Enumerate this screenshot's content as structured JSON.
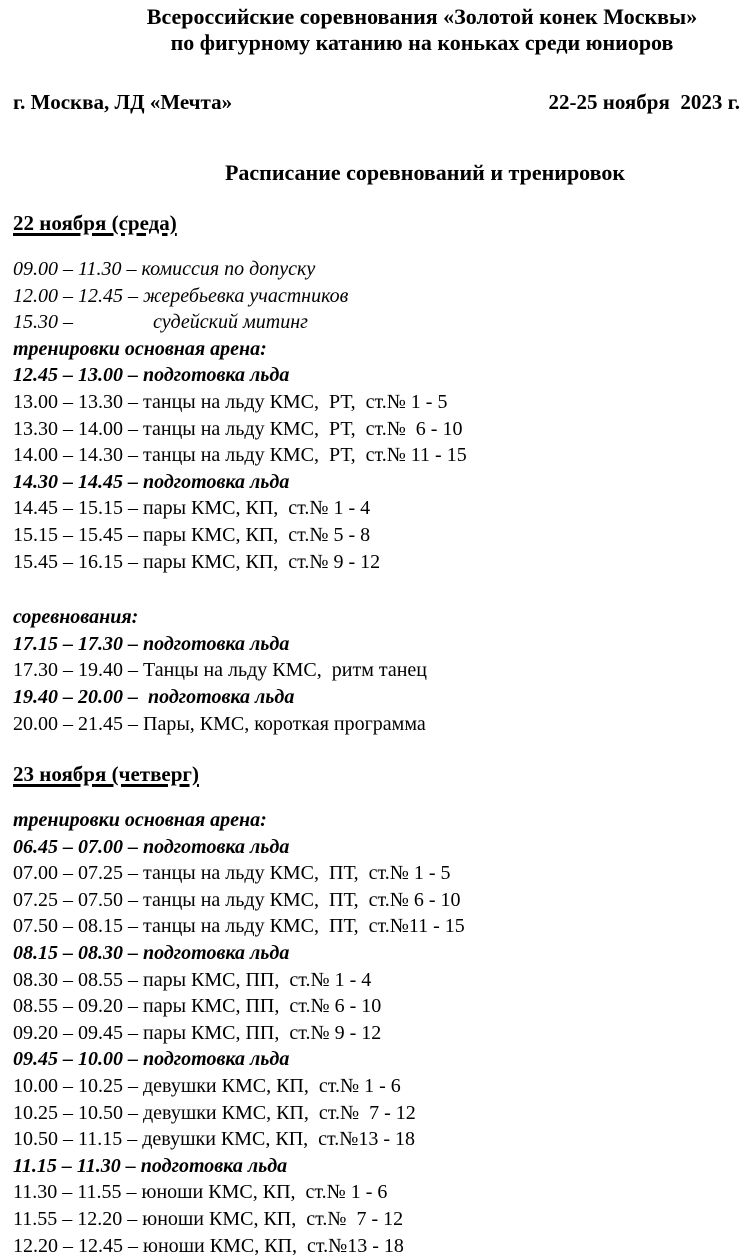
{
  "page": {
    "title_line1": "Всероссийские соревнования «Золотой конек Москвы»",
    "title_line2": "по фигурному катанию на коньках среди юниоров",
    "venue": "г. Москва, ЛД «Мечта»",
    "dates": "22-25 ноября  2023 г.",
    "subtitle": "Расписание соревнований и тренировок"
  },
  "sections": [
    {
      "heading": "22 ноября (среда)",
      "lines": [
        {
          "style": "italic",
          "text": "09.00 – 11.30 – комиссия по допуску"
        },
        {
          "style": "italic",
          "text": "12.00 – 12.45 – жеребьевка участников"
        },
        {
          "style": "italic",
          "text": "15.30 –                судейский митинг"
        },
        {
          "style": "bold-italic",
          "text": "тренировки основная арена:"
        },
        {
          "style": "bold-italic",
          "text": "12.45 – 13.00 – подготовка льда"
        },
        {
          "style": "regular",
          "text": "13.00 – 13.30 – танцы на льду КМС,  РТ,  ст.№ 1 - 5"
        },
        {
          "style": "regular",
          "text": "13.30 – 14.00 – танцы на льду КМС,  РТ,  ст.№  6 - 10"
        },
        {
          "style": "regular",
          "text": "14.00 – 14.30 – танцы на льду КМС,  РТ,  ст.№ 11 - 15"
        },
        {
          "style": "bold-italic",
          "text": "14.30 – 14.45 – подготовка льда"
        },
        {
          "style": "regular",
          "text": "14.45 – 15.15 – пары КМС, КП,  ст.№ 1 - 4"
        },
        {
          "style": "regular",
          "text": "15.15 – 15.45 – пары КМС, КП,  ст.№ 5 - 8"
        },
        {
          "style": "regular",
          "text": "15.45 – 16.15 – пары КМС, КП,  ст.№ 9 - 12"
        },
        {
          "style": "spacer",
          "text": ""
        },
        {
          "style": "bold-italic",
          "text": "соревнования:"
        },
        {
          "style": "bold-italic",
          "text": "17.15 – 17.30 – подготовка льда"
        },
        {
          "style": "regular",
          "text": "17.30 – 19.40 – Танцы на льду КМС,  ритм танец"
        },
        {
          "style": "bold-italic",
          "text": "19.40 – 20.00 –  подготовка льда"
        },
        {
          "style": "regular",
          "text": "20.00 – 21.45 – Пары, КМС, короткая программа"
        }
      ]
    },
    {
      "heading": "23 ноября (четверг)",
      "lines": [
        {
          "style": "bold-italic",
          "text": "тренировки основная арена:"
        },
        {
          "style": "bold-italic",
          "text": "06.45 – 07.00 – подготовка льда"
        },
        {
          "style": "regular",
          "text": "07.00 – 07.25 – танцы на льду КМС,  ПТ,  ст.№ 1 - 5"
        },
        {
          "style": "regular",
          "text": "07.25 – 07.50 – танцы на льду КМС,  ПТ,  ст.№ 6 - 10"
        },
        {
          "style": "regular",
          "text": "07.50 – 08.15 – танцы на льду КМС,  ПТ,  ст.№11 - 15"
        },
        {
          "style": "bold-italic",
          "text": "08.15 – 08.30 – подготовка льда"
        },
        {
          "style": "regular",
          "text": "08.30 – 08.55 – пары КМС, ПП,  ст.№ 1 - 4"
        },
        {
          "style": "regular",
          "text": "08.55 – 09.20 – пары КМС, ПП,  ст.№ 6 - 10"
        },
        {
          "style": "regular",
          "text": "09.20 – 09.45 – пары КМС, ПП,  ст.№ 9 - 12"
        },
        {
          "style": "bold-italic",
          "text": "09.45 – 10.00 – подготовка льда"
        },
        {
          "style": "regular",
          "text": "10.00 – 10.25 – девушки КМС, КП,  ст.№ 1 - 6"
        },
        {
          "style": "regular",
          "text": "10.25 – 10.50 – девушки КМС, КП,  ст.№  7 - 12"
        },
        {
          "style": "regular",
          "text": "10.50 – 11.15 – девушки КМС, КП,  ст.№13 - 18"
        },
        {
          "style": "bold-italic",
          "text": "11.15 – 11.30 – подготовка льда"
        },
        {
          "style": "regular",
          "text": "11.30 – 11.55 – юноши КМС, КП,  ст.№ 1 - 6"
        },
        {
          "style": "regular",
          "text": "11.55 – 12.20 – юноши КМС, КП,  ст.№  7 - 12"
        },
        {
          "style": "regular",
          "text": "12.20 – 12.45 – юноши КМС, КП,  ст.№13 - 18"
        }
      ]
    }
  ]
}
